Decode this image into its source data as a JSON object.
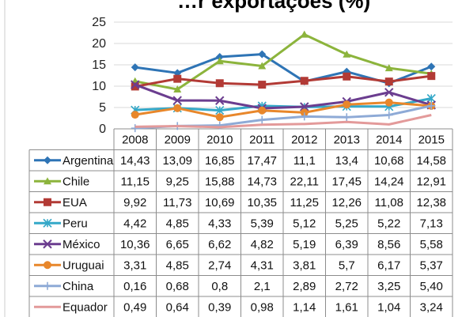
{
  "chart_data": {
    "type": "line",
    "title": "…r exportações (%)",
    "xlabel": "",
    "ylabel": "",
    "ylim": [
      0,
      25
    ],
    "yticks": [
      "25",
      "20",
      "15",
      "10",
      "5",
      "0"
    ],
    "ytick_values": [
      25,
      20,
      15,
      10,
      5,
      0
    ],
    "grid": "horizontal",
    "legend_placement": "data-table",
    "categories": [
      "2008",
      "2009",
      "2010",
      "2011",
      "2012",
      "2013",
      "2014",
      "2015"
    ],
    "series": [
      {
        "name": "Argentina",
        "color": "#2e74b5",
        "marker": "diamond",
        "values": [
          14.43,
          13.09,
          16.85,
          17.47,
          11.1,
          13.4,
          10.68,
          14.58
        ],
        "labels": [
          "14,43",
          "13,09",
          "16,85",
          "17,47",
          "11,1",
          "13,4",
          "10,68",
          "14,58"
        ]
      },
      {
        "name": "Chile",
        "color": "#8cb43c",
        "marker": "triangle",
        "values": [
          11.15,
          9.25,
          15.88,
          14.73,
          22.11,
          17.45,
          14.24,
          12.91
        ],
        "labels": [
          "11,15",
          "9,25",
          "15,88",
          "14,73",
          "22,11",
          "17,45",
          "14,24",
          "12,91"
        ]
      },
      {
        "name": "EUA",
        "color": "#b23a35",
        "marker": "square",
        "values": [
          9.92,
          11.73,
          10.69,
          10.35,
          11.25,
          12.26,
          11.08,
          12.38
        ],
        "labels": [
          "9,92",
          "11,73",
          "10,69",
          "10,35",
          "11,25",
          "12,26",
          "11,08",
          "12,38"
        ]
      },
      {
        "name": "Peru",
        "color": "#34a8c8",
        "marker": "asterisk",
        "values": [
          4.42,
          4.85,
          4.33,
          5.39,
          5.12,
          5.25,
          5.22,
          7.13
        ],
        "labels": [
          "4,42",
          "4,85",
          "4,33",
          "5,39",
          "5,12",
          "5,25",
          "5,22",
          "7,13"
        ]
      },
      {
        "name": "México",
        "color": "#6b3d8f",
        "marker": "x",
        "values": [
          10.36,
          6.65,
          6.62,
          4.82,
          5.19,
          6.39,
          8.56,
          5.58
        ],
        "labels": [
          "10,36",
          "6,65",
          "6,62",
          "4,82",
          "5,19",
          "6,39",
          "8,56",
          "5,58"
        ]
      },
      {
        "name": "Uruguai",
        "color": "#e8872b",
        "marker": "circle",
        "values": [
          3.31,
          4.85,
          2.74,
          4.31,
          3.81,
          5.7,
          6.17,
          5.37
        ],
        "labels": [
          "3,31",
          "4,85",
          "2,74",
          "4,31",
          "3,81",
          "5,7",
          "6,17",
          "5,37"
        ]
      },
      {
        "name": "China",
        "color": "#8eaad6",
        "marker": "plus",
        "values": [
          0.16,
          0.68,
          0.8,
          2.1,
          2.89,
          2.72,
          3.25,
          5.4
        ],
        "labels": [
          "0,16",
          "0,68",
          "0,8",
          "2,1",
          "2,89",
          "2,72",
          "3,25",
          "5,40"
        ]
      },
      {
        "name": "Equador",
        "color": "#e39a9a",
        "marker": "none",
        "values": [
          0.49,
          0.64,
          0.39,
          0.98,
          1.14,
          1.61,
          1.04,
          3.24
        ],
        "labels": [
          "0,49",
          "0,64",
          "0,39",
          "0,98",
          "1,14",
          "1,61",
          "1,04",
          "3,24"
        ]
      }
    ]
  }
}
